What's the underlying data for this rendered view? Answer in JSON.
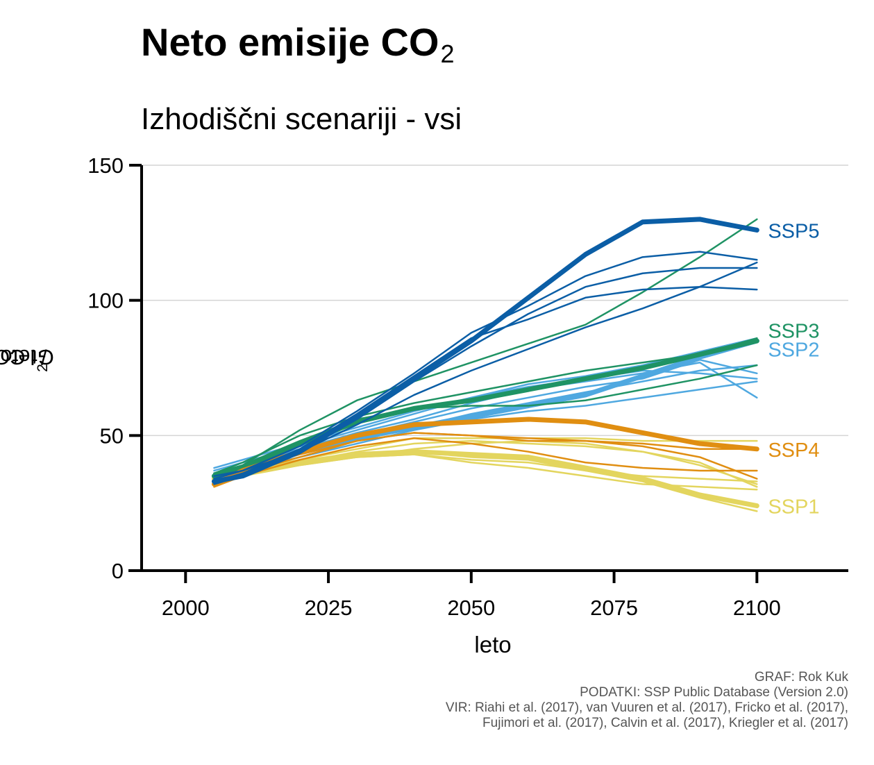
{
  "title": {
    "main": "Neto emisije CO",
    "sub": "2"
  },
  "subtitle": "Izhodiščni scenariji - vsi",
  "credits": [
    "GRAF: Rok Kuk",
    "PODATKI: SSP Public Database (Version 2.0)",
    "VIR: Riahi et al. (2017), van Vuuren et al. (2017), Fricko et al. (2017),",
    "Fujimori et al. (2017), Calvin et al. (2017), Kriegler et al. (2017)"
  ],
  "chart_data": {
    "type": "line",
    "title": "Neto emisije CO2",
    "subtitle": "Izhodiščni scenariji - vsi",
    "xlabel": "leto",
    "ylabel": {
      "pre": "Gt CO",
      "sub": "2",
      "post": " / leto"
    },
    "xlim": [
      1990,
      2116
    ],
    "ylim": [
      0,
      150
    ],
    "xticks": [
      2000,
      2025,
      2050,
      2075,
      2100
    ],
    "yticks": [
      0,
      50,
      100,
      150
    ],
    "grid": "horizontal",
    "legend": "direct labels at line ends (right)",
    "x": [
      2005,
      2010,
      2020,
      2030,
      2040,
      2050,
      2060,
      2070,
      2080,
      2090,
      2100
    ],
    "groups": [
      {
        "name": "SSP1",
        "color": "#E3D55E",
        "label_y": 24,
        "series": [
          {
            "values": [
              34,
              37,
              40,
              43,
              44,
              43,
              42,
              38,
              34,
              28,
              24
            ],
            "marker": true
          },
          {
            "values": [
              34,
              36,
              39,
              42,
              45,
              47,
              48,
              47,
              44,
              39,
              32
            ]
          },
          {
            "values": [
              33,
              36,
              40,
              44,
              47,
              48,
              47,
              46,
              44,
              40,
              31
            ]
          },
          {
            "values": [
              34,
              36,
              40,
              43,
              44,
              42,
              41,
              37,
              33,
              27,
              22
            ]
          },
          {
            "values": [
              33,
              36,
              41,
              45,
              49,
              49,
              49,
              49,
              48,
              48,
              48
            ]
          },
          {
            "values": [
              34,
              37,
              41,
              42,
              43,
              40,
              38,
              35,
              32,
              31,
              30
            ]
          },
          {
            "values": [
              33,
              35,
              39,
              42,
              43,
              41,
              40,
              37,
              35,
              34,
              33
            ]
          }
        ]
      },
      {
        "name": "SSP2",
        "color": "#4FA8E0",
        "label_y": 82,
        "series": [
          {
            "values": [
              35,
              38,
              44,
              49,
              53,
              57,
              61,
              65,
              72,
              79,
              85
            ],
            "marker": true
          },
          {
            "values": [
              37,
              40,
              46,
              52,
              58,
              64,
              68,
              71,
              74,
              73,
              71
            ]
          },
          {
            "values": [
              36,
              39,
              45,
              51,
              56,
              62,
              67,
              70,
              73,
              77,
              64
            ]
          },
          {
            "values": [
              35,
              38,
              43,
              48,
              53,
              58,
              62,
              66,
              70,
              74,
              76
            ]
          },
          {
            "values": [
              38,
              41,
              47,
              53,
              59,
              64,
              69,
              72,
              76,
              81,
              86
            ]
          },
          {
            "values": [
              34,
              37,
              42,
              47,
              52,
              56,
              59,
              61,
              64,
              67,
              70
            ]
          },
          {
            "values": [
              36,
              39,
              44,
              50,
              55,
              60,
              64,
              68,
              71,
              78,
              73
            ]
          }
        ]
      },
      {
        "name": "SSP3",
        "color": "#1F9364",
        "label_y": 89,
        "series": [
          {
            "values": [
              35,
              38,
              47,
              55,
              60,
              63,
              67,
              71,
              75,
              80,
              85
            ],
            "marker": true
          },
          {
            "values": [
              34,
              39,
              52,
              63,
              70,
              77,
              84,
              91,
              103,
              116,
              130
            ]
          },
          {
            "values": [
              36,
              40,
              50,
              57,
              62,
              66,
              70,
              74,
              77,
              80,
              86
            ]
          },
          {
            "values": [
              36,
              39,
              48,
              56,
              60,
              61,
              61,
              63,
              67,
              71,
              76
            ]
          }
        ]
      },
      {
        "name": "SSP4",
        "color": "#E08E11",
        "label_y": 45,
        "series": [
          {
            "values": [
              32,
              37,
              44,
              50,
              54,
              55,
              56,
              55,
              51,
              47,
              45
            ],
            "marker": true
          },
          {
            "values": [
              32,
              36,
              42,
              48,
              51,
              50,
              48,
              48,
              47,
              45,
              45
            ]
          },
          {
            "values": [
              31,
              35,
              41,
              46,
              49,
              47,
              44,
              40,
              38,
              37,
              37
            ]
          },
          {
            "values": [
              33,
              37,
              43,
              48,
              51,
              50,
              49,
              48,
              46,
              42,
              34
            ]
          }
        ]
      },
      {
        "name": "SSP5",
        "color": "#0B5EA6",
        "label_y": 126,
        "series": [
          {
            "values": [
              33,
              35,
              44,
              57,
              71,
              85,
              101,
              117,
              129,
              130,
              126
            ],
            "marker": true
          },
          {
            "values": [
              34,
              37,
              46,
              59,
              73,
              88,
              98,
              109,
              116,
              118,
              115
            ]
          },
          {
            "values": [
              32,
              35,
              44,
              56,
              70,
              83,
              95,
              105,
              110,
              112,
              112
            ]
          },
          {
            "values": [
              33,
              36,
              45,
              58,
              72,
              86,
              93,
              101,
              104,
              105,
              104
            ]
          },
          {
            "values": [
              35,
              37,
              44,
              54,
              65,
              74,
              82,
              90,
              97,
              105,
              114
            ]
          }
        ]
      }
    ]
  }
}
